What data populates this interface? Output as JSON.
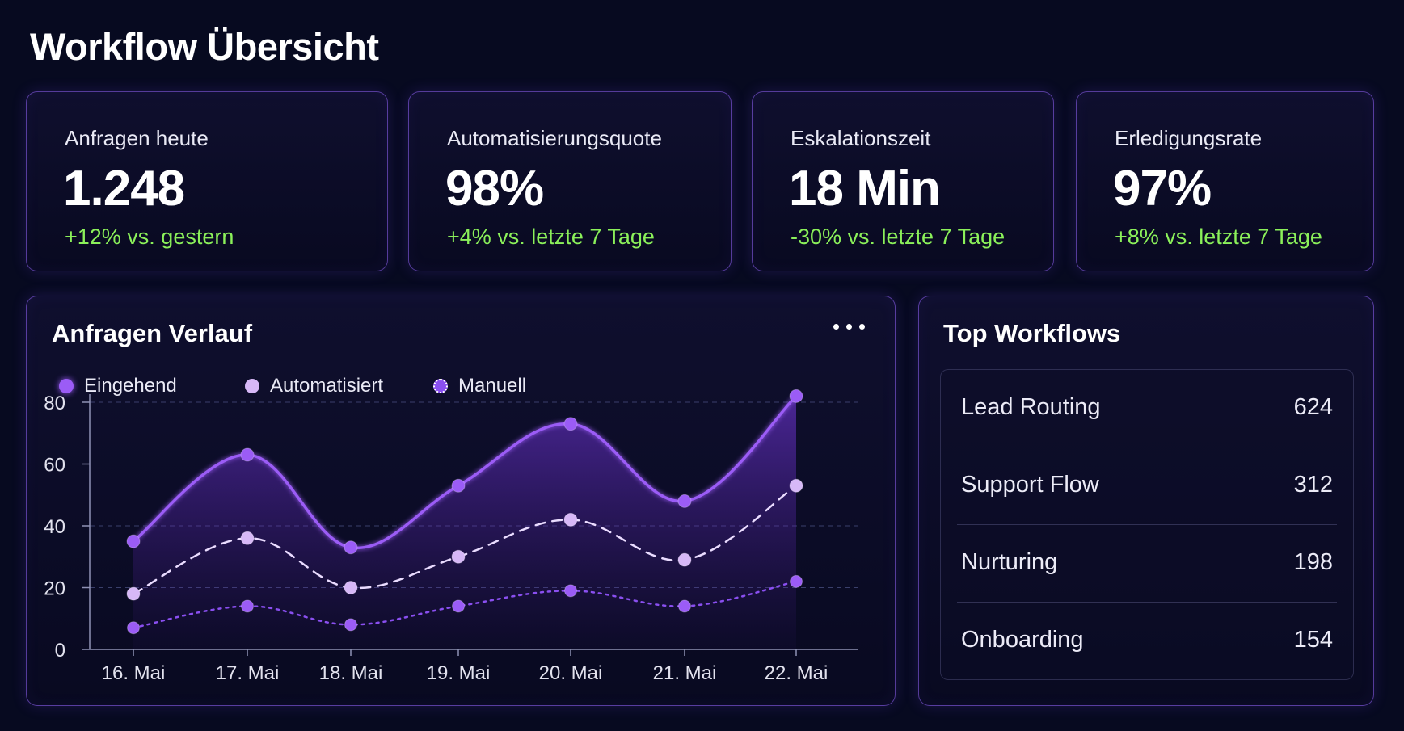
{
  "page": {
    "title": "Workflow Übersicht"
  },
  "kpis": [
    {
      "label": "Anfragen heute",
      "value": "1.248",
      "delta": "+12% vs. gestern"
    },
    {
      "label": "Automatisierungsquote",
      "value": "98%",
      "delta": "+4% vs. letzte 7 Tage"
    },
    {
      "label": "Eskalationszeit",
      "value": "18 Min",
      "delta": "-30% vs. letzte 7 Tage"
    },
    {
      "label": "Erledigungsrate",
      "value": "97%",
      "delta": "+8% vs. letzte 7 Tage"
    }
  ],
  "colors": {
    "delta_positive": "#8bf05a",
    "eingehend": "#9b5cf6",
    "automatisiert": "#d7b8f7",
    "manuell": "#8a4ff0",
    "card_border": "#9664ff"
  },
  "chart_panel": {
    "title": "Anfragen Verlauf",
    "more_icon": "more-horizontal-icon",
    "legend": [
      "Eingehend",
      "Automatisiert",
      "Manuell"
    ]
  },
  "chart_data": {
    "type": "line",
    "x": [
      "16. Mai",
      "17. Mai",
      "18. Mai",
      "19. Mai",
      "20. Mai",
      "21. Mai",
      "22. Mai"
    ],
    "ylim": [
      0,
      80
    ],
    "yticks": [
      0,
      20,
      40,
      60,
      80
    ],
    "grid": true,
    "legend_position": "top-left",
    "series": [
      {
        "name": "Eingehend",
        "values": [
          35,
          63,
          33,
          53,
          73,
          48,
          82
        ],
        "style": "solid-area"
      },
      {
        "name": "Automatisiert",
        "values": [
          18,
          36,
          20,
          30,
          42,
          29,
          53
        ],
        "style": "dashed"
      },
      {
        "name": "Manuell",
        "values": [
          7,
          14,
          8,
          14,
          19,
          14,
          22
        ],
        "style": "dotted"
      }
    ]
  },
  "top_workflows": {
    "title": "Top Workflows",
    "items": [
      {
        "name": "Lead Routing",
        "count": "624"
      },
      {
        "name": "Support Flow",
        "count": "312"
      },
      {
        "name": "Nurturing",
        "count": "198"
      },
      {
        "name": "Onboarding",
        "count": "154"
      }
    ]
  }
}
